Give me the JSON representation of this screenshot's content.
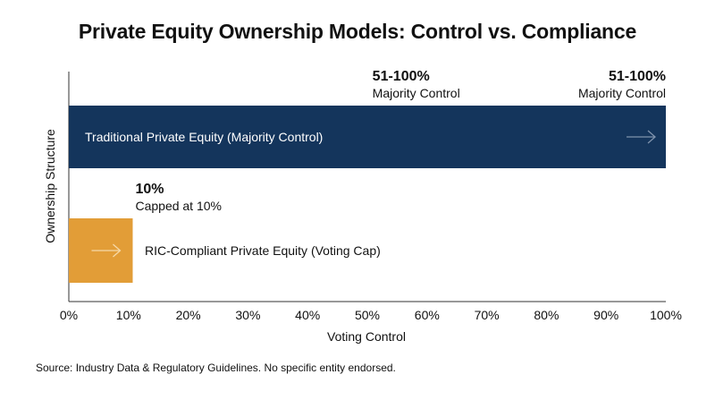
{
  "chart_data": {
    "type": "bar",
    "orientation": "horizontal",
    "title": "Private Equity Ownership Models: Control vs. Compliance",
    "xlabel": "Voting Control",
    "ylabel": "Ownership Structure",
    "xlim": [
      0,
      100
    ],
    "x_ticks": [
      "0%",
      "10%",
      "20%",
      "30%",
      "40%",
      "50%",
      "60%",
      "70%",
      "80%",
      "90%",
      "100%"
    ],
    "grid": false,
    "bars": [
      {
        "category": "Traditional Private Equity (Majority Control)",
        "value_range": [
          51,
          100
        ],
        "display_value": 100,
        "color": "#14355c",
        "label_color": "#ffffff",
        "arrow_icon": "arrow-right-icon",
        "annotations": [
          {
            "x": 51,
            "value": "51-100%",
            "text": "Majority Control",
            "align": "left"
          },
          {
            "x": 100,
            "value": "51-100%",
            "text": "Majority Control",
            "align": "right"
          }
        ]
      },
      {
        "category": "RIC-Compliant Private Equity (Voting Cap)",
        "value_range": [
          0,
          10
        ],
        "display_value": 10.7,
        "color": "#e29d37",
        "label_color": "#111111",
        "arrow_icon": "arrow-right-icon",
        "annotations": [
          {
            "x": 10.7,
            "value": "10%",
            "text": "Capped at 10%",
            "align": "left"
          }
        ]
      }
    ]
  },
  "source": "Source: Industry Data & Regulatory Guidelines. No specific entity endorsed."
}
